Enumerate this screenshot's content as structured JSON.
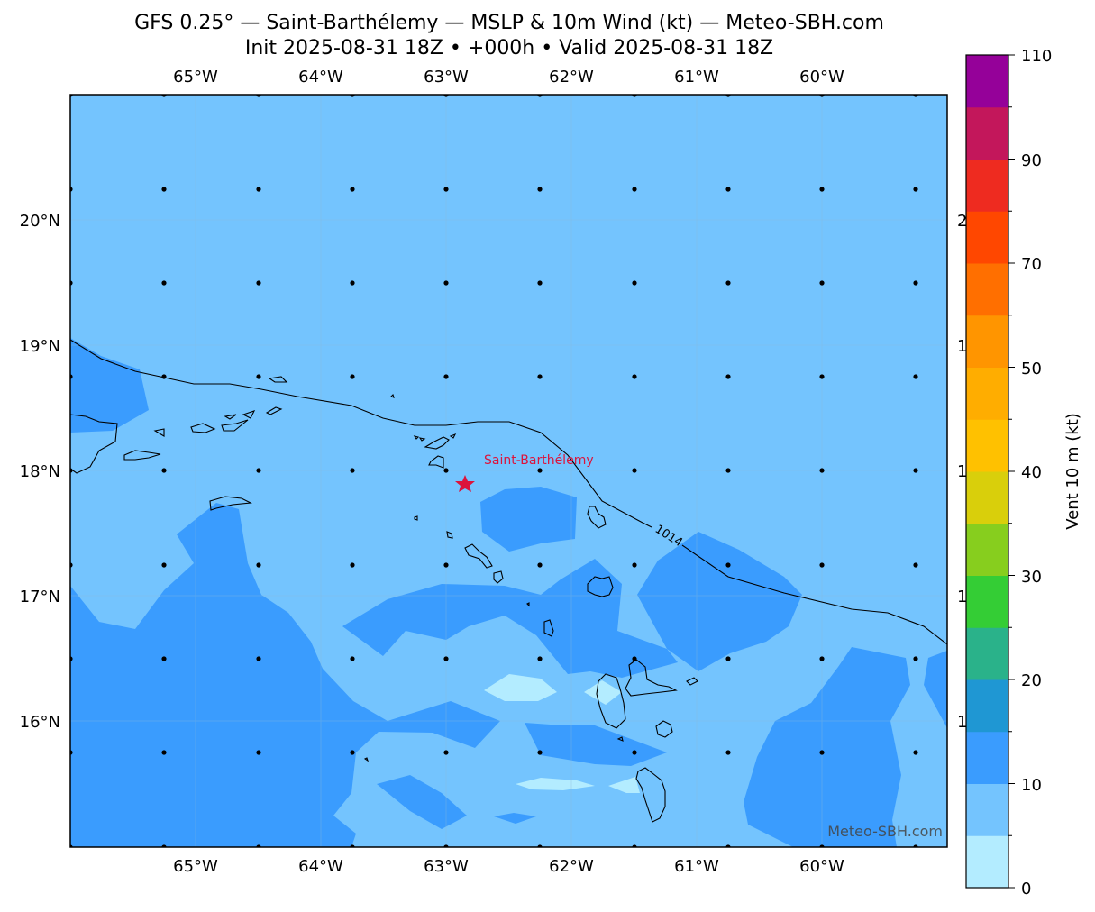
{
  "title_line1": "GFS 0.25° — Saint-Barthélemy — MSLP & 10m Wind (kt) — Meteo-SBH.com",
  "title_line2": "Init 2025-08-31 18Z • +000h • Valid 2025-08-31 18Z",
  "lon_labels": [
    "65°W",
    "64°W",
    "63°W",
    "62°W",
    "61°W",
    "60°W"
  ],
  "lat_labels": [
    "20°N",
    "19°N",
    "18°N",
    "17°N",
    "16°N"
  ],
  "right_lat_labels_partial": [
    "2",
    "1",
    "1",
    "1",
    "1"
  ],
  "station_label": "Saint-Barthélemy",
  "isobar_label": "1014",
  "watermark": "Meteo-SBH.com",
  "colorbar": {
    "label": "Vent 10 m (kt)",
    "tick_labels": [
      "0",
      "10",
      "20",
      "30",
      "40",
      "50",
      "70",
      "90",
      "110"
    ],
    "colors": [
      "#b3ecff",
      "#74c4fe",
      "#3a9cfe",
      "#1f97d3",
      "#2ab28a",
      "#34cd35",
      "#87ce1e",
      "#d9cf0b",
      "#ffc100",
      "#ffad00",
      "#ff9500",
      "#ff6f00",
      "#ff4700",
      "#ee2b20",
      "#c3175b",
      "#950199"
    ]
  },
  "colors": {
    "wind_0_5": "#b3ecff",
    "wind_5_10": "#74c4fe",
    "wind_10_15": "#3a9cfe",
    "station_marker": "#dc143c",
    "isobar": "#000000"
  },
  "icons": {
    "station": "star-marker",
    "wind": "calm-wind-dot"
  }
}
